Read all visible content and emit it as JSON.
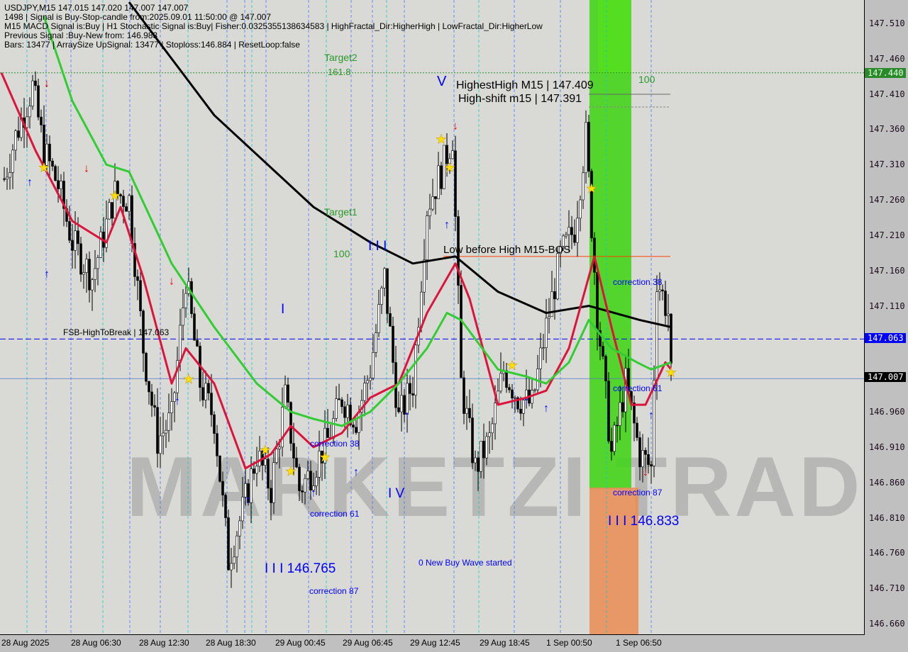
{
  "header": {
    "line1": "USDJPY,M15  147.015 147.020 147.007 147.007",
    "line2": "1498 | Signal is Buy-Stop-candle from:2025.09.01 11:50:00 @ 147.007",
    "line3": "M15 MACD Signal is:Buy | H1 Stochastic Signal is:Buy| Fisher:0.0325355138634583 | HighFractal_Dir:HigherHigh | LowFractal_Dir:HigherLow",
    "line4": "Previous Signal :Buy-New from: 146.983",
    "line5": "Bars: 13477 | ArraySize UpSignal: 13477 | Stoploss:146.884 | ResetLoop:false"
  },
  "watermark": "MARKETZI TRADE",
  "annotations": {
    "target2": "Target2",
    "fib_161": "161.8",
    "fib_100_left": "100",
    "fib_100_right": "100",
    "target1": "Target1",
    "highest_high": "HighestHigh   M15 | 147.409",
    "high_shift": "High-shift m15 | 147.391",
    "low_before_high": "Low before High   M15-BOS",
    "fsb": "FSB-HighToBreak | 147.063",
    "wave_v": "V",
    "wave_iii_top": "I I I",
    "wave_i": "I",
    "wave_iv": "I V",
    "low1": "I I I 146.765",
    "low2": "I I I 146.833",
    "corr38_a": "correction 38",
    "corr61_a": "correction 61",
    "corr87_a": "correction 87",
    "corr38_b": "correction 38",
    "corr61_b": "correction 61",
    "corr87_b": "correction 87",
    "new_wave": "0 New Buy Wave started"
  },
  "colors": {
    "bull": "#000000",
    "bear": "#000000",
    "ma_slow": "#000000",
    "ma_red": "#dc143c",
    "ma_green": "#32cd32",
    "buy_zone": "#44d41c",
    "sell_zone": "#e8905a",
    "accent_blue": "#0000ff"
  },
  "chart_data": {
    "type": "candlestick",
    "symbol": "USDJPY",
    "timeframe": "M15",
    "ylim": [
      146.635,
      147.535
    ],
    "y_ticks": [
      "147.510",
      "147.460",
      "147.410",
      "147.360",
      "147.310",
      "147.260",
      "147.210",
      "147.160",
      "147.110",
      "147.063",
      "147.007",
      "146.960",
      "146.910",
      "146.860",
      "146.810",
      "146.760",
      "146.710",
      "146.660"
    ],
    "x_ticks": [
      "28 Aug 2025",
      "28 Aug 06:30",
      "28 Aug 12:30",
      "28 Aug 18:30",
      "29 Aug 00:45",
      "29 Aug 06:45",
      "29 Aug 12:45",
      "29 Aug 18:45",
      "1 Sep 00:50",
      "1 Sep 06:50"
    ],
    "price_tags": {
      "target": "147.440",
      "fsb": "147.063",
      "current": "147.007"
    },
    "levels": {
      "fsb_high_to_break": 147.063,
      "current": 147.007,
      "target_dotted": 147.44,
      "bos": 147.18
    },
    "closes": [
      [
        1,
        147.29
      ],
      [
        5,
        147.35
      ],
      [
        11,
        147.42
      ],
      [
        15,
        147.33
      ],
      [
        20,
        147.28
      ],
      [
        25,
        147.2
      ],
      [
        32,
        147.15
      ],
      [
        40,
        147.27
      ],
      [
        45,
        147.26
      ],
      [
        50,
        147.05
      ],
      [
        55,
        146.92
      ],
      [
        60,
        146.95
      ],
      [
        65,
        147.15
      ],
      [
        70,
        147.0
      ],
      [
        75,
        146.95
      ],
      [
        80,
        146.75
      ],
      [
        85,
        146.82
      ],
      [
        90,
        146.9
      ],
      [
        95,
        146.85
      ],
      [
        100,
        146.98
      ],
      [
        105,
        146.85
      ],
      [
        110,
        146.88
      ],
      [
        115,
        146.92
      ],
      [
        120,
        146.98
      ],
      [
        125,
        146.95
      ],
      [
        130,
        147.02
      ],
      [
        135,
        147.15
      ],
      [
        140,
        146.95
      ],
      [
        145,
        147.0
      ],
      [
        150,
        147.25
      ],
      [
        155,
        147.3
      ],
      [
        159,
        147.35
      ],
      [
        162,
        147.0
      ],
      [
        167,
        146.88
      ],
      [
        172,
        146.92
      ],
      [
        177,
        147.02
      ],
      [
        182,
        146.98
      ],
      [
        187,
        146.97
      ],
      [
        192,
        147.08
      ],
      [
        197,
        147.18
      ],
      [
        202,
        147.22
      ],
      [
        206,
        147.35
      ],
      [
        210,
        147.1
      ],
      [
        215,
        146.9
      ],
      [
        220,
        147.0
      ],
      [
        225,
        146.9
      ],
      [
        229,
        146.88
      ],
      [
        231,
        147.15
      ],
      [
        235,
        147.1
      ],
      [
        236,
        147.007
      ]
    ],
    "series": [
      {
        "line": "slow_ma",
        "points": [
          [
            45,
            147.54
          ],
          [
            75,
            147.38
          ],
          [
            110,
            147.25
          ],
          [
            130,
            147.2
          ],
          [
            145,
            147.17
          ],
          [
            160,
            147.18
          ],
          [
            175,
            147.13
          ],
          [
            192,
            147.1
          ],
          [
            207,
            147.11
          ],
          [
            225,
            147.09
          ],
          [
            236,
            147.08
          ]
        ]
      },
      {
        "line": "red_ma",
        "points": [
          [
            0,
            147.44
          ],
          [
            12,
            147.33
          ],
          [
            25,
            147.23
          ],
          [
            37,
            147.2
          ],
          [
            42,
            147.25
          ],
          [
            50,
            147.15
          ],
          [
            60,
            147.0
          ],
          [
            65,
            147.05
          ],
          [
            75,
            147.0
          ],
          [
            86,
            146.88
          ],
          [
            95,
            146.9
          ],
          [
            102,
            146.94
          ],
          [
            110,
            146.91
          ],
          [
            120,
            146.93
          ],
          [
            130,
            146.98
          ],
          [
            140,
            147.0
          ],
          [
            150,
            147.1
          ],
          [
            160,
            147.17
          ],
          [
            165,
            147.12
          ],
          [
            175,
            146.97
          ],
          [
            185,
            146.98
          ],
          [
            192,
            146.99
          ],
          [
            200,
            147.05
          ],
          [
            209,
            147.18
          ],
          [
            215,
            147.08
          ],
          [
            222,
            146.97
          ],
          [
            227,
            146.97
          ],
          [
            234,
            147.03
          ],
          [
            236,
            147.02
          ]
        ]
      },
      {
        "line": "green_ma",
        "points": [
          [
            15,
            147.52
          ],
          [
            25,
            147.4
          ],
          [
            37,
            147.31
          ],
          [
            45,
            147.3
          ],
          [
            60,
            147.17
          ],
          [
            75,
            147.08
          ],
          [
            90,
            147.0
          ],
          [
            102,
            146.96
          ],
          [
            110,
            146.95
          ],
          [
            120,
            146.94
          ],
          [
            130,
            146.96
          ],
          [
            140,
            147.0
          ],
          [
            150,
            147.05
          ],
          [
            157,
            147.1
          ],
          [
            162,
            147.09
          ],
          [
            175,
            147.02
          ],
          [
            185,
            147.01
          ],
          [
            192,
            147.0
          ],
          [
            200,
            147.03
          ],
          [
            207,
            147.09
          ],
          [
            215,
            147.05
          ],
          [
            224,
            147.03
          ],
          [
            229,
            147.02
          ],
          [
            236,
            147.03
          ]
        ]
      }
    ]
  }
}
